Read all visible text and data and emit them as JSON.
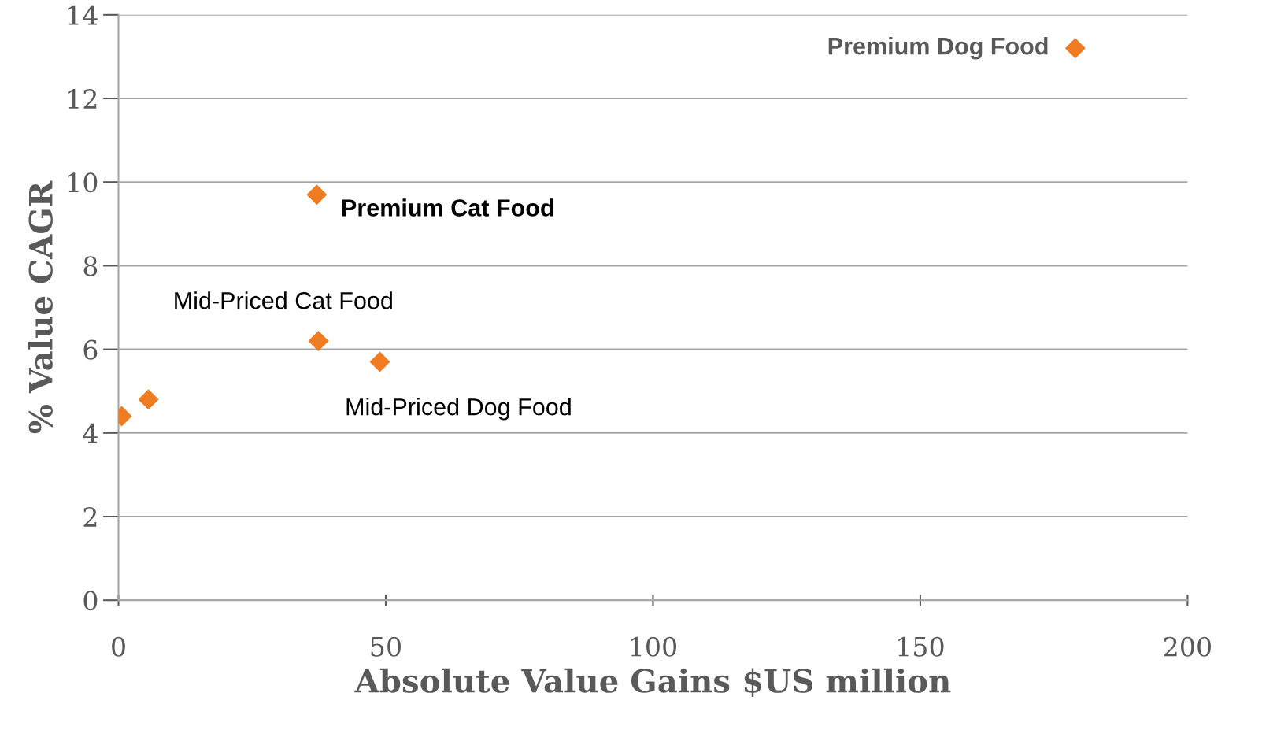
{
  "chart_data": {
    "type": "scatter",
    "xlabel": "Absolute Value Gains $US million",
    "ylabel": "% Value CAGR",
    "x": [
      0.6,
      5.6,
      37.1,
      37.4,
      48.9,
      179
    ],
    "series": [
      {
        "color": "#f07c22",
        "values": [
          4.4,
          4.8,
          9.7,
          6.2,
          5.7,
          13.2
        ]
      }
    ],
    "marker": "diamond",
    "xlim": [
      0,
      200
    ],
    "xticks": [
      0,
      50,
      100,
      150,
      200
    ],
    "ylim": [
      0,
      14
    ],
    "yticks": [
      0,
      2,
      4,
      6,
      8,
      10,
      12,
      14
    ],
    "grid": "y",
    "legend": false,
    "annotations": [
      {
        "text": "Premium Dog Food",
        "x": 179,
        "y": 13.2
      },
      {
        "text": "Premium Cat Food",
        "x": 37.1,
        "y": 9.7
      },
      {
        "text": "Mid-Priced Cat Food",
        "x": 37.4,
        "y": 6.2
      },
      {
        "text": "Mid-Priced Dog Food",
        "x": 48.9,
        "y": 5.7
      }
    ]
  }
}
